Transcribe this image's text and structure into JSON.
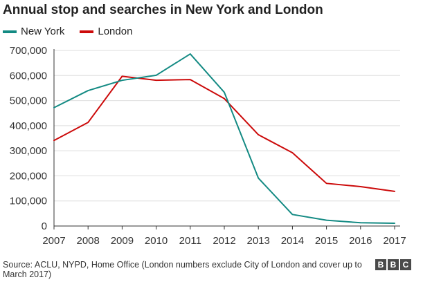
{
  "header": {
    "title": "Annual stop and searches in New York and London"
  },
  "footer": {
    "source": "Source: ACLU, NYPD, Home Office (London numbers exclude City of London and cover up to March 2017)",
    "logo_letters": [
      "B",
      "B",
      "C"
    ]
  },
  "colors": {
    "new_york": "#138a83",
    "london": "#cc0a0a",
    "grid": "#dddddd",
    "axis": "#333333"
  },
  "chart_data": {
    "type": "line",
    "title": "Annual stop and searches in New York and London",
    "xlabel": "",
    "ylabel": "",
    "x": [
      2007,
      2008,
      2009,
      2010,
      2011,
      2012,
      2013,
      2014,
      2015,
      2016,
      2017
    ],
    "x_tick_labels": [
      "2007",
      "2008",
      "2009",
      "2010",
      "2011",
      "2012",
      "2013",
      "2014",
      "2015",
      "2016",
      "2017"
    ],
    "ylim": [
      0,
      700000
    ],
    "y_ticks": [
      0,
      100000,
      200000,
      300000,
      400000,
      500000,
      600000,
      700000
    ],
    "y_tick_labels": [
      "0",
      "100,000",
      "200,000",
      "300,000",
      "400,000",
      "500,000",
      "600,000",
      "700,000"
    ],
    "grid": true,
    "legend_position": "top-left",
    "series": [
      {
        "name": "New York",
        "color": "#138a83",
        "values": [
          472000,
          540000,
          581000,
          601000,
          686000,
          533000,
          191000,
          46000,
          23000,
          13000,
          11000
        ]
      },
      {
        "name": "London",
        "color": "#cc0a0a",
        "values": [
          341000,
          413000,
          597000,
          581000,
          584000,
          508000,
          364000,
          292000,
          170000,
          157000,
          138000
        ]
      }
    ]
  }
}
